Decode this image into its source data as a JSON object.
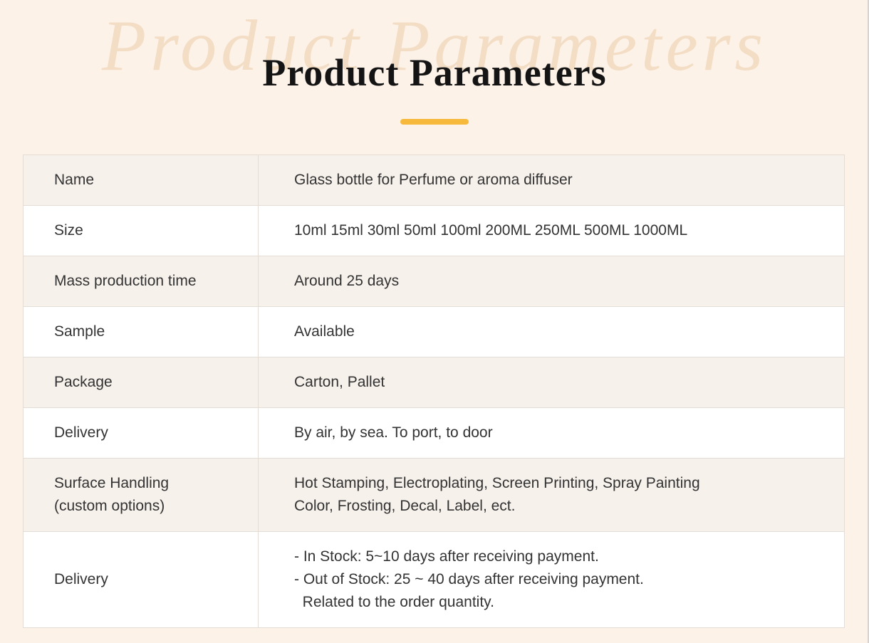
{
  "header": {
    "title": "Product Parameters",
    "watermark": "Product Parameters"
  },
  "table": {
    "rows": [
      {
        "label_lines": [
          "Name"
        ],
        "value_lines": [
          "Glass bottle for Perfume or aroma diffuser"
        ]
      },
      {
        "label_lines": [
          "Size"
        ],
        "value_lines": [
          "10ml 15ml 30ml 50ml 100ml 200ML 250ML 500ML 1000ML"
        ]
      },
      {
        "label_lines": [
          "Mass production time"
        ],
        "value_lines": [
          "Around 25 days"
        ]
      },
      {
        "label_lines": [
          "Sample"
        ],
        "value_lines": [
          "Available"
        ]
      },
      {
        "label_lines": [
          "Package"
        ],
        "value_lines": [
          "Carton, Pallet"
        ]
      },
      {
        "label_lines": [
          "Delivery"
        ],
        "value_lines": [
          "By air, by sea. To port, to door"
        ]
      },
      {
        "label_lines": [
          "Surface Handling",
          "(custom options)"
        ],
        "value_lines": [
          "Hot Stamping, Electroplating, Screen Printing, Spray Painting",
          "Color, Frosting, Decal, Label, ect."
        ]
      },
      {
        "label_lines": [
          "Delivery"
        ],
        "value_lines": [
          "- In Stock: 5~10 days after receiving payment.",
          "- Out of Stock: 25 ~ 40 days after receiving payment.",
          "  Related to the order quantity."
        ]
      }
    ]
  },
  "colors": {
    "page-bg": "#fdf2e8",
    "row-bg": "#ffffff",
    "row-alt-bg": "#f7f1eb",
    "accent-underline": "#f6b93b",
    "text": "#333333",
    "title": "#141414",
    "watermark": "#f3ddc5",
    "border": "#e3ddd6"
  }
}
